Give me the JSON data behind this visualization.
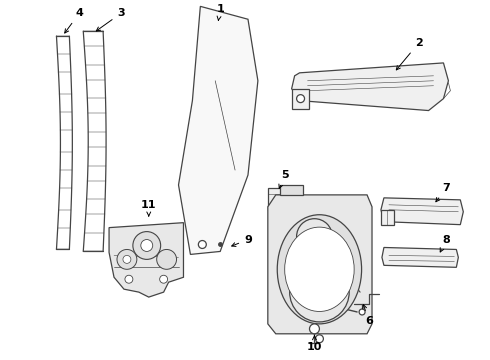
{
  "background_color": "#ffffff",
  "line_color": "#444444",
  "label_color": "#000000",
  "figsize": [
    4.9,
    3.6
  ],
  "dpi": 100
}
